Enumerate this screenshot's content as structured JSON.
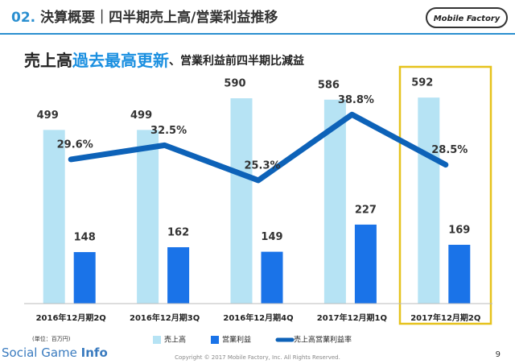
{
  "header": {
    "number": "02.",
    "title": "決算概要｜四半期売上高/営業利益推移",
    "logo": "Mobile Factory"
  },
  "chart_data": {
    "type": "bar",
    "subtitle_parts": [
      "売上高",
      "過去最高更新",
      "、営業利益前四半期比減益"
    ],
    "unit_note": "(単位：百万円)",
    "categories": [
      "2016年12月期2Q",
      "2016年12月期3Q",
      "2016年12月期4Q",
      "2017年12月期1Q",
      "2017年12月期2Q"
    ],
    "ylim": [
      0,
      700
    ],
    "y2lim": [
      0,
      50
    ],
    "series": [
      {
        "name": "売上高",
        "color": "#b6e3f4",
        "values": [
          499,
          499,
          590,
          586,
          592
        ]
      },
      {
        "name": "営業利益",
        "color": "#1a73e8",
        "values": [
          148,
          162,
          149,
          227,
          169
        ]
      },
      {
        "name": "売上高営業利益率",
        "color": "#0d62b8",
        "type": "line",
        "axis": "y2",
        "values": [
          29.6,
          32.5,
          25.3,
          38.8,
          28.5
        ],
        "value_labels": [
          "29.6%",
          "32.5%",
          "25.3%",
          "38.8%",
          "28.5%"
        ]
      }
    ]
  },
  "footer": {
    "watermark_parts": [
      "Social Game ",
      "Info"
    ],
    "copyright": "Copyright © 2017 Mobile Factory, Inc. All Rights Reserved.",
    "page": "9"
  }
}
